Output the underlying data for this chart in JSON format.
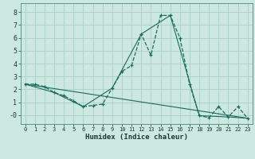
{
  "xlabel": "Humidex (Indice chaleur)",
  "background_color": "#cce8e0",
  "grid_color": "#aacec6",
  "line_color": "#1a6b5a",
  "xlim": [
    -0.5,
    23.5
  ],
  "ylim": [
    -0.7,
    8.7
  ],
  "xticks": [
    0,
    1,
    2,
    3,
    4,
    5,
    6,
    7,
    8,
    9,
    10,
    11,
    12,
    13,
    14,
    15,
    16,
    17,
    18,
    19,
    20,
    21,
    22,
    23
  ],
  "yticks": [
    0,
    1,
    2,
    3,
    4,
    5,
    6,
    7,
    8
  ],
  "series1_x": [
    0,
    1,
    2,
    3,
    4,
    5,
    6,
    7,
    8,
    9,
    10,
    11,
    12,
    13,
    14,
    15,
    16,
    17,
    18,
    19,
    20,
    21,
    22,
    23
  ],
  "series1_y": [
    2.4,
    2.4,
    2.2,
    1.75,
    1.5,
    1.1,
    0.65,
    0.75,
    0.85,
    2.1,
    3.4,
    3.85,
    6.3,
    4.65,
    7.75,
    7.75,
    6.0,
    2.4,
    -0.05,
    -0.2,
    0.65,
    -0.15,
    0.65,
    -0.25
  ],
  "series2_x": [
    0,
    23
  ],
  "series2_y": [
    2.4,
    -0.25
  ],
  "series3_x": [
    0,
    3,
    6,
    9,
    12,
    15,
    18,
    21,
    23
  ],
  "series3_y": [
    2.4,
    1.75,
    0.65,
    2.1,
    6.3,
    7.75,
    -0.05,
    -0.15,
    -0.25
  ]
}
